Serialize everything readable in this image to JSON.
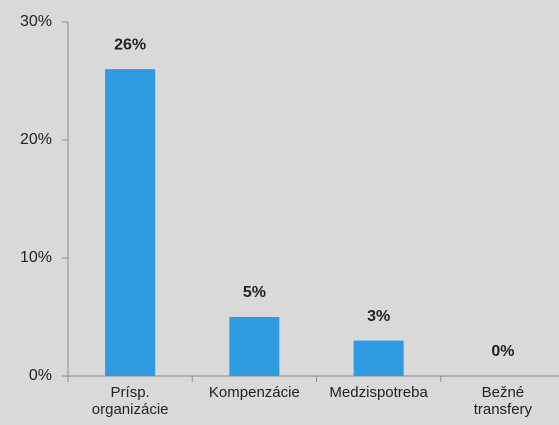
{
  "chart_data": {
    "type": "bar",
    "categories": [
      "Prísp. organizácie",
      "Kompenzácie",
      "Medzispotreba",
      "Bežné transfery"
    ],
    "values": [
      26,
      5,
      3,
      0
    ],
    "value_labels": [
      "26%",
      "5%",
      "3%",
      "0%"
    ],
    "color": "#2e9ae0",
    "ylim": [
      0,
      30
    ],
    "yticks": [
      {
        "value": 0,
        "label": "0%"
      },
      {
        "value": 10,
        "label": "10%"
      },
      {
        "value": 20,
        "label": "20%"
      },
      {
        "value": 30,
        "label": "30%"
      }
    ],
    "grid": false
  }
}
